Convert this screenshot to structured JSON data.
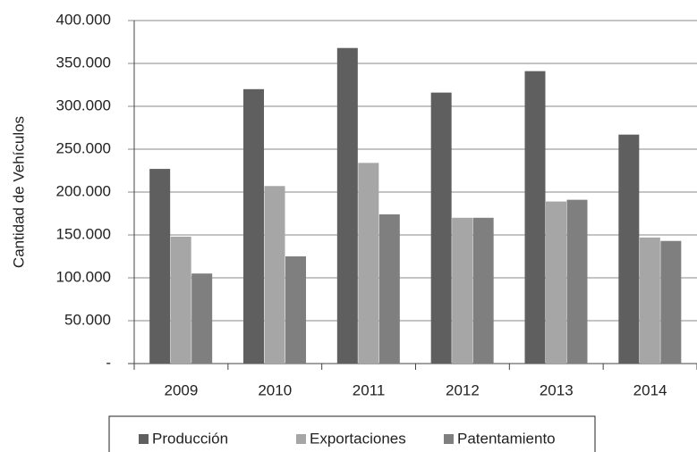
{
  "chart_data": {
    "type": "bar",
    "ylabel": "Cantidad de Vehículos",
    "categories": [
      "2009",
      "2010",
      "2011",
      "2012",
      "2013",
      "2014"
    ],
    "series": [
      {
        "name": "Producción",
        "color": "#5f5f5f",
        "values": [
          227000,
          320000,
          368000,
          316000,
          341000,
          267000
        ]
      },
      {
        "name": "Exportaciones",
        "color": "#a6a6a6",
        "values": [
          148000,
          207000,
          234000,
          170000,
          189000,
          147000
        ]
      },
      {
        "name": "Patentamiento",
        "color": "#7f7f7f",
        "values": [
          105000,
          125000,
          174000,
          170000,
          191000,
          143000
        ]
      }
    ],
    "ylim": [
      0,
      400000
    ],
    "yticks": [
      {
        "value": 0,
        "label": "-"
      },
      {
        "value": 50000,
        "label": "50.000"
      },
      {
        "value": 100000,
        "label": "100.000"
      },
      {
        "value": 150000,
        "label": "150.000"
      },
      {
        "value": 200000,
        "label": "200.000"
      },
      {
        "value": 250000,
        "label": "250.000"
      },
      {
        "value": 300000,
        "label": "300.000"
      },
      {
        "value": 350000,
        "label": "350.000"
      },
      {
        "value": 400000,
        "label": "400.000"
      }
    ],
    "grid": true,
    "legend": "bottom"
  }
}
